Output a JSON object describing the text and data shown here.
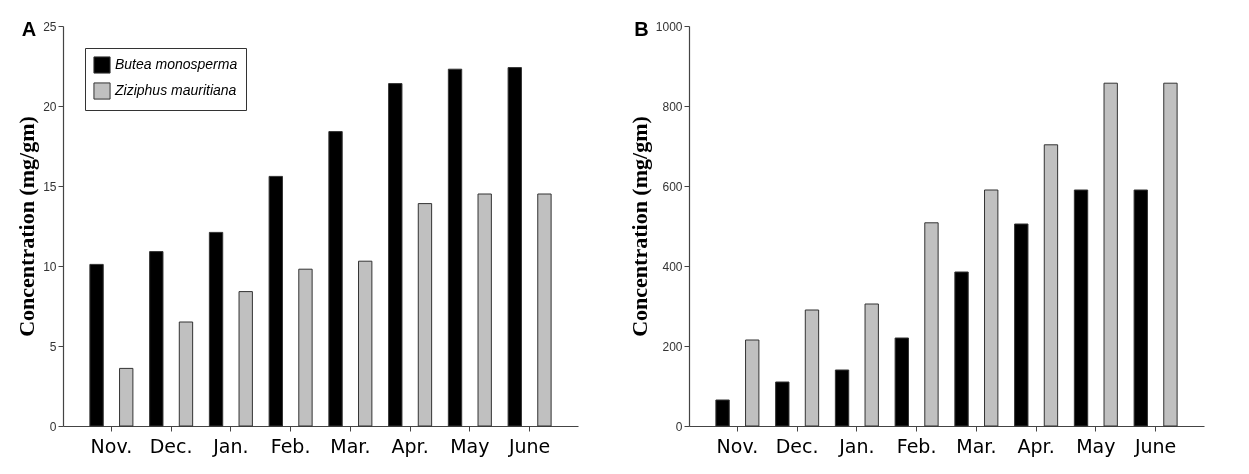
{
  "chart_data": [
    {
      "type": "bar",
      "title": "A",
      "ylabel": "Concentration (mg/gm)",
      "categories": [
        "Nov.",
        "Dec.",
        "Jan.",
        "Feb.",
        "Mar.",
        "Apr.",
        "May",
        "June"
      ],
      "series": [
        {
          "name": "Butea monosperma",
          "color": "#000000",
          "values": [
            10.1,
            10.9,
            12.1,
            15.6,
            18.4,
            21.4,
            22.3,
            22.4
          ]
        },
        {
          "name": "Ziziphus mauritiana",
          "color": "#c0c0c0",
          "values": [
            3.6,
            6.5,
            8.4,
            9.8,
            10.3,
            13.9,
            14.5,
            14.5
          ]
        }
      ],
      "ylim": [
        0,
        25
      ],
      "yticks": [
        0,
        5,
        10,
        15,
        20,
        25
      ],
      "grid": false,
      "legend": "top left"
    },
    {
      "type": "bar",
      "title": "B",
      "ylabel": "Concentration (mg/gm)",
      "categories": [
        "Nov.",
        "Dec.",
        "Jan.",
        "Feb.",
        "Mar.",
        "Apr.",
        "May",
        "June"
      ],
      "series": [
        {
          "name": "Butea monosperma",
          "color": "#000000",
          "values": [
            65,
            110,
            140,
            220,
            385,
            505,
            590,
            590
          ]
        },
        {
          "name": "Ziziphus mauritiana",
          "color": "#c0c0c0",
          "values": [
            215,
            290,
            305,
            508,
            590,
            703,
            857,
            857
          ]
        }
      ],
      "ylim": [
        0,
        1000
      ],
      "yticks": [
        0,
        200,
        400,
        600,
        800,
        1000
      ],
      "grid": false,
      "legend": "top left"
    }
  ]
}
